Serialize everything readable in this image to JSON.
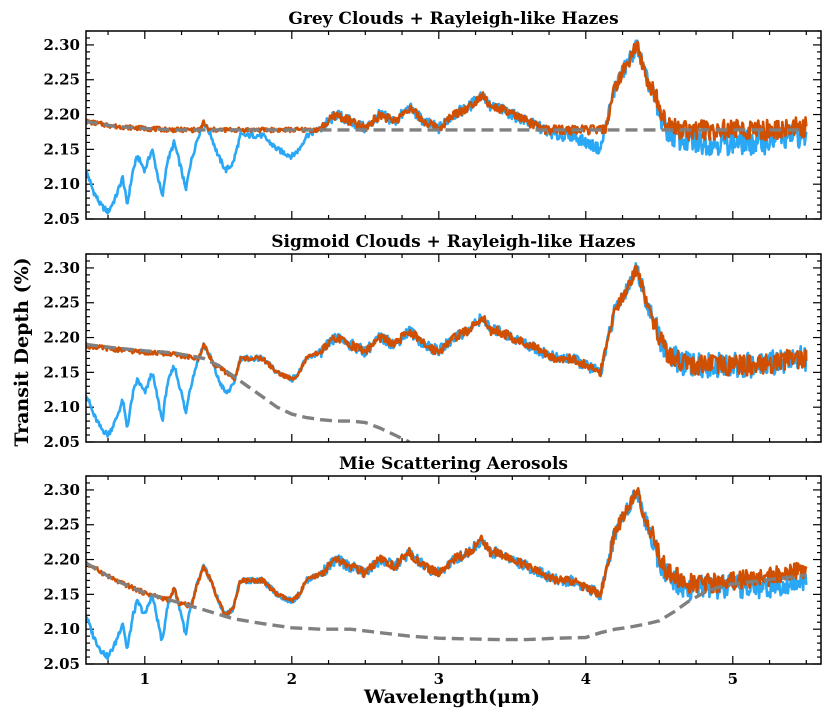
{
  "chart_data": {
    "type": "line",
    "ylabel": "Transit Depth (%)",
    "xlabel": "Wavelength(μm)",
    "xlim": [
      0.6,
      5.6
    ],
    "ylim": [
      2.05,
      2.32
    ],
    "x_ticks": [
      1,
      2,
      3,
      4,
      5
    ],
    "y_ticks": [
      2.05,
      2.1,
      2.15,
      2.2,
      2.25,
      2.3
    ],
    "y_tick_labels": [
      "2.05",
      "2.10",
      "2.15",
      "2.20",
      "2.25",
      "2.30"
    ],
    "x_tick_labels": [
      "1",
      "2",
      "3",
      "4",
      "5"
    ],
    "colors": {
      "blue": "#2aa7f5",
      "orange": "#d14f00",
      "grey": "#808080"
    },
    "clear_spectrum": {
      "x": [
        0.6,
        0.65,
        0.7,
        0.75,
        0.8,
        0.85,
        0.88,
        0.92,
        0.95,
        1.0,
        1.05,
        1.08,
        1.1,
        1.12,
        1.15,
        1.2,
        1.25,
        1.28,
        1.3,
        1.35,
        1.4,
        1.45,
        1.5,
        1.55,
        1.6,
        1.65,
        1.7,
        1.8,
        1.9,
        2.0,
        2.05,
        2.1,
        2.2,
        2.3,
        2.4,
        2.5,
        2.6,
        2.7,
        2.8,
        2.9,
        3.0,
        3.1,
        3.2,
        3.3,
        3.35,
        3.4,
        3.5,
        3.6,
        3.7,
        3.8,
        3.9,
        4.0,
        4.1,
        4.2,
        4.3,
        4.35,
        4.4,
        4.45,
        4.5,
        4.55,
        4.6,
        4.7,
        4.8,
        4.9,
        5.0,
        5.1,
        5.2,
        5.3,
        5.4,
        5.5
      ],
      "y": [
        2.12,
        2.09,
        2.07,
        2.06,
        2.08,
        2.11,
        2.07,
        2.12,
        2.14,
        2.12,
        2.15,
        2.12,
        2.1,
        2.08,
        2.13,
        2.16,
        2.12,
        2.09,
        2.12,
        2.16,
        2.19,
        2.17,
        2.14,
        2.12,
        2.13,
        2.17,
        2.17,
        2.17,
        2.15,
        2.14,
        2.15,
        2.17,
        2.18,
        2.2,
        2.19,
        2.18,
        2.2,
        2.19,
        2.21,
        2.19,
        2.18,
        2.2,
        2.21,
        2.23,
        2.21,
        2.21,
        2.2,
        2.19,
        2.18,
        2.17,
        2.17,
        2.16,
        2.15,
        2.24,
        2.28,
        2.3,
        2.26,
        2.23,
        2.2,
        2.18,
        2.17,
        2.16,
        2.16,
        2.16,
        2.16,
        2.16,
        2.16,
        2.165,
        2.17,
        2.17
      ]
    },
    "panels": [
      {
        "title": "Grey Clouds + Rayleigh-like Hazes",
        "aerosol_series_name": "Grey Clouds + Rayleigh-like Hazes",
        "aerosol": {
          "x": [
            0.6,
            0.8,
            1.0,
            1.2,
            1.4,
            1.6,
            1.8,
            2.0,
            2.5,
            3.0,
            4.0,
            5.0,
            5.5
          ],
          "y": [
            2.19,
            2.183,
            2.18,
            2.178,
            2.178,
            2.178,
            2.178,
            2.178,
            2.178,
            2.178,
            2.178,
            2.178,
            2.178
          ]
        },
        "floor": 2.178
      },
      {
        "title": "Sigmoid Clouds + Rayleigh-like Hazes",
        "aerosol_series_name": "Sigmoid Clouds + Rayleigh-like Hazes",
        "aerosol": {
          "x": [
            0.6,
            0.8,
            1.0,
            1.2,
            1.4,
            1.5,
            1.6,
            1.7,
            1.8,
            1.9,
            2.0,
            2.1,
            2.2,
            2.3,
            2.4,
            2.5,
            2.6,
            2.7,
            2.8
          ],
          "y": [
            2.19,
            2.185,
            2.181,
            2.178,
            2.17,
            2.16,
            2.145,
            2.13,
            2.115,
            2.1,
            2.09,
            2.085,
            2.082,
            2.08,
            2.08,
            2.078,
            2.07,
            2.06,
            2.05
          ]
        },
        "floor": 2.158
      },
      {
        "title": "Mie Scattering Aerosols",
        "aerosol_series_name": "Mie Scattering Aerosols",
        "aerosol": {
          "x": [
            0.6,
            0.8,
            1.0,
            1.2,
            1.4,
            1.6,
            1.8,
            2.0,
            2.2,
            2.4,
            2.6,
            2.8,
            3.0,
            3.2,
            3.4,
            3.6,
            3.8,
            4.0,
            4.1,
            4.2,
            4.3,
            4.4,
            4.5,
            4.6,
            4.7,
            4.8,
            4.9,
            5.0,
            5.2,
            5.4,
            5.5
          ],
          "y": [
            2.195,
            2.17,
            2.152,
            2.14,
            2.128,
            2.115,
            2.108,
            2.102,
            2.1,
            2.1,
            2.095,
            2.09,
            2.087,
            2.086,
            2.085,
            2.085,
            2.087,
            2.088,
            2.095,
            2.1,
            2.103,
            2.107,
            2.112,
            2.125,
            2.14,
            2.152,
            2.16,
            2.165,
            2.17,
            2.175,
            2.178
          ]
        },
        "floor": 2.158
      }
    ]
  }
}
